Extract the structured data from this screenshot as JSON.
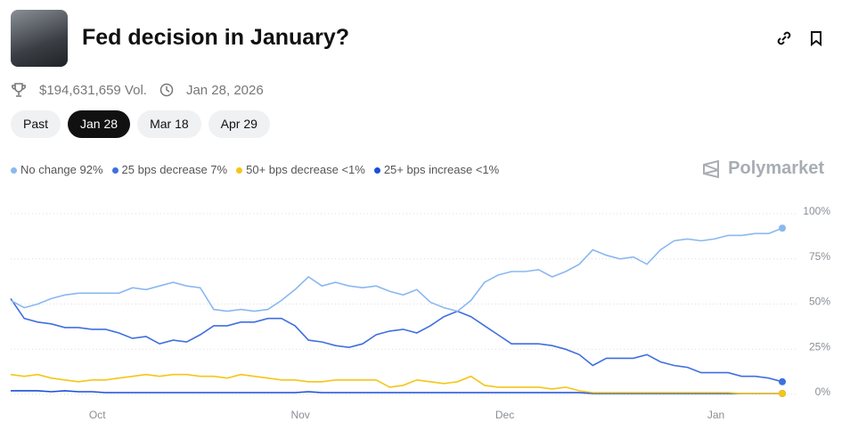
{
  "header": {
    "title": "Fed decision in January?",
    "volume": "$194,631,659 Vol.",
    "date": "Jan 28, 2026"
  },
  "tabs": [
    "Past",
    "Jan 28",
    "Mar 18",
    "Apr 29"
  ],
  "brand": "Polymarket",
  "chart_data": {
    "type": "line",
    "xlim": [
      0,
      57
    ],
    "xticks": [
      {
        "value": 6.4,
        "label": "Oct"
      },
      {
        "value": 21.4,
        "label": "Nov"
      },
      {
        "value": 36.5,
        "label": "Dec"
      },
      {
        "value": 52.1,
        "label": "Jan"
      }
    ],
    "ylim": [
      0,
      100
    ],
    "yticks": [
      {
        "value": 0,
        "label": "0%"
      },
      {
        "value": 25,
        "label": "25%"
      },
      {
        "value": 50,
        "label": "50%"
      },
      {
        "value": 75,
        "label": "75%"
      },
      {
        "value": 100,
        "label": "100%"
      }
    ],
    "grid": true,
    "series": [
      {
        "name": "No change",
        "legend_value": "92%",
        "color": "#8ab8f0",
        "values": [
          52,
          48,
          50,
          53,
          55,
          56,
          56,
          56,
          56,
          59,
          58,
          60,
          62,
          60,
          59,
          47,
          46,
          47,
          46,
          47,
          52,
          58,
          65,
          60,
          62,
          60,
          59,
          60,
          57,
          55,
          58,
          51,
          48,
          46,
          52,
          62,
          66,
          68,
          68,
          69,
          65,
          68,
          72,
          80,
          77,
          75,
          76,
          72,
          80,
          85,
          86,
          85,
          86,
          88,
          88,
          89,
          89,
          92
        ]
      },
      {
        "name": "25 bps decrease",
        "legend_value": "7%",
        "color": "#3f6fe0",
        "values": [
          53,
          42,
          40,
          39,
          37,
          37,
          36,
          36,
          34,
          31,
          32,
          28,
          30,
          29,
          33,
          38,
          38,
          40,
          40,
          42,
          42,
          38,
          30,
          29,
          27,
          26,
          28,
          33,
          35,
          36,
          34,
          38,
          43,
          46,
          43,
          38,
          33,
          28,
          28,
          28,
          27,
          25,
          22,
          16,
          20,
          20,
          20,
          22,
          18,
          16,
          15,
          12,
          12,
          12,
          10,
          10,
          9,
          7
        ]
      },
      {
        "name": "50+ bps decrease",
        "legend_value": "<1%",
        "color": "#f5c518",
        "values": [
          11,
          10,
          11,
          9,
          8,
          7,
          8,
          8,
          9,
          10,
          11,
          10,
          11,
          11,
          10,
          10,
          9,
          11,
          10,
          9,
          8,
          8,
          7,
          7,
          8,
          8,
          8,
          8,
          4,
          5,
          8,
          7,
          6,
          7,
          10,
          5,
          4,
          4,
          4,
          4,
          3,
          4,
          2,
          1,
          1,
          1,
          1,
          1,
          1,
          1,
          1,
          1,
          1,
          1,
          0.5,
          0.5,
          0.5,
          0.5
        ]
      },
      {
        "name": "25+ bps increase",
        "legend_value": "<1%",
        "color": "#1a4fd8",
        "values": [
          2,
          2,
          2,
          1.5,
          2,
          1.5,
          1.5,
          1,
          1,
          1,
          1,
          1,
          1,
          1,
          1,
          1,
          1,
          1,
          1,
          1,
          1,
          1,
          1.5,
          1,
          1,
          1,
          1,
          1,
          1,
          1,
          1,
          1,
          1,
          1,
          1,
          1,
          1,
          1,
          1,
          1,
          1,
          1,
          1,
          0.5,
          0.5,
          0.5,
          0.5,
          0.5,
          0.5,
          0.5,
          0.5,
          0.5,
          0.5,
          0.5,
          0.5,
          0.5,
          0.5,
          0.5
        ]
      }
    ]
  }
}
